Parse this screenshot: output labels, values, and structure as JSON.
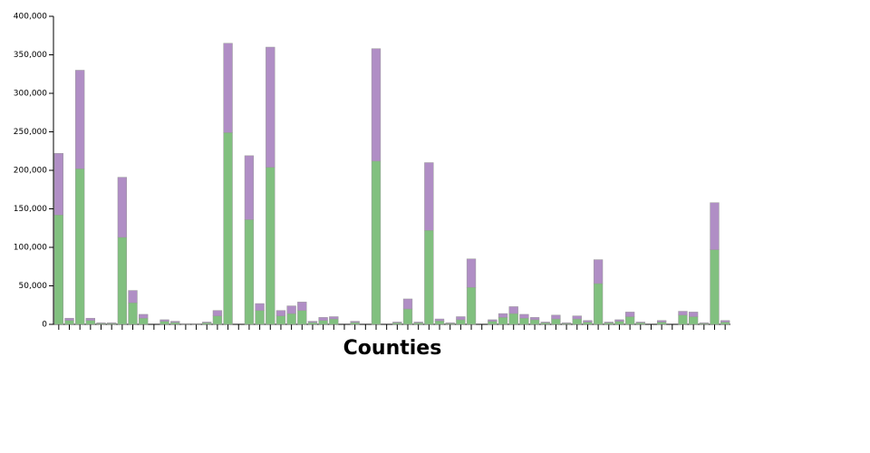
{
  "chart_data": {
    "type": "stacked-bar",
    "x_label": "Counties",
    "categories": [
      null,
      null,
      null,
      null,
      null,
      null,
      null,
      null,
      null,
      null,
      null,
      null,
      null,
      null,
      null,
      null,
      null,
      null,
      null,
      null,
      null,
      null,
      null,
      null,
      null,
      null,
      null,
      null,
      null,
      null,
      null,
      null,
      null,
      null,
      null,
      null,
      null,
      null,
      null,
      null,
      null,
      null,
      null,
      null,
      null,
      null,
      null,
      null,
      null,
      null,
      null,
      null,
      null,
      null,
      null,
      null,
      null,
      null,
      null,
      null,
      null,
      null,
      null,
      null
    ],
    "series": [
      {
        "color": "#81c07f",
        "values": [
          142000,
          5000,
          202000,
          5000,
          1200,
          1200,
          113000,
          28000,
          8000,
          0,
          4000,
          2500,
          600,
          600,
          2000,
          11000,
          249000,
          0,
          136000,
          18000,
          204000,
          11000,
          14000,
          18000,
          2500,
          5000,
          7000,
          0,
          2500,
          0,
          212000,
          0,
          2000,
          20000,
          2000,
          122000,
          4500,
          1200,
          6000,
          48000,
          0,
          4000,
          9000,
          14000,
          8000,
          6000,
          2000,
          7000,
          1200,
          7000,
          3000,
          53000,
          2000,
          4000,
          10000,
          2000,
          0,
          3000,
          0,
          12000,
          10000,
          1200,
          97000,
          3000
        ]
      },
      {
        "color": "#b08ec5",
        "values": [
          80000,
          3000,
          128000,
          3000,
          800,
          800,
          78000,
          16000,
          5000,
          0,
          2000,
          1500,
          400,
          400,
          1000,
          7000,
          116000,
          0,
          83000,
          9000,
          156000,
          7000,
          10000,
          11000,
          1500,
          4000,
          3000,
          0,
          1500,
          0,
          146000,
          0,
          1000,
          13000,
          1000,
          88000,
          2500,
          800,
          4000,
          37000,
          0,
          2000,
          5000,
          9000,
          5000,
          3000,
          1000,
          5000,
          800,
          4000,
          2000,
          31000,
          1000,
          2000,
          6000,
          1000,
          0,
          2000,
          0,
          5000,
          6000,
          800,
          61000,
          2000
        ]
      }
    ],
    "ylim": [
      0,
      400000
    ],
    "yticks": [
      0,
      {
        "value": 50000,
        "label": "50,000"
      },
      {
        "value": 100000,
        "label": "100,000"
      },
      {
        "value": 150000,
        "label": "150,000"
      },
      {
        "value": 200000,
        "label": "200,000"
      },
      {
        "value": 250000,
        "label": "250,000"
      },
      {
        "value": 300000,
        "label": "300,000"
      },
      {
        "value": 350000,
        "label": "350,000"
      },
      {
        "value": 400000,
        "label": "400,000"
      }
    ],
    "grid": false
  }
}
